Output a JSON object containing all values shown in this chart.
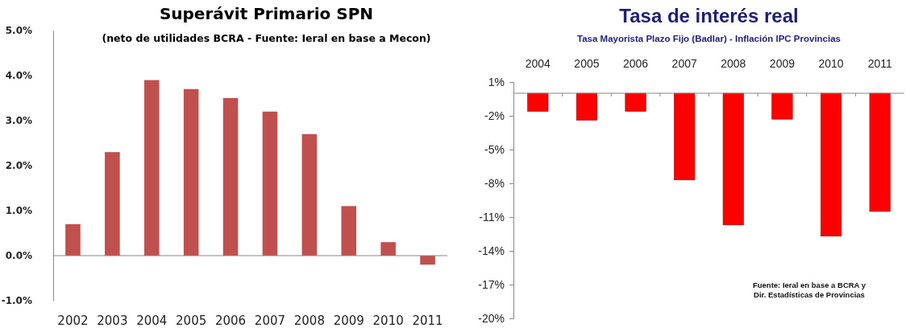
{
  "chart_data": [
    {
      "type": "bar",
      "title": "Superávit Primario SPN",
      "subtitle": "(neto de utilidades BCRA - Fuente: Ieral en base a Mecon)",
      "categories": [
        "2002",
        "2003",
        "2004",
        "2005",
        "2006",
        "2007",
        "2008",
        "2009",
        "2010",
        "2011"
      ],
      "values": [
        0.7,
        2.3,
        3.9,
        3.7,
        3.5,
        3.2,
        2.7,
        1.1,
        0.3,
        -0.2
      ],
      "color": "#c0504d",
      "ylim": [
        -1,
        5
      ],
      "yticks": [
        {
          "value": -1,
          "label": "-1.0%"
        },
        {
          "value": 0,
          "label": "0.0%"
        },
        {
          "value": 1,
          "label": "1.0%"
        },
        {
          "value": 2,
          "label": "2.0%"
        },
        {
          "value": 3,
          "label": "3.0%"
        },
        {
          "value": 4,
          "label": "4.0%"
        },
        {
          "value": 5,
          "label": "5.0%"
        }
      ]
    },
    {
      "type": "bar",
      "title": "Tasa de interés real",
      "subtitle": "Tasa Mayorista Plazo Fijo (Badlar) - Inflación IPC Provincias",
      "categories": [
        "2004",
        "2005",
        "2006",
        "2007",
        "2008",
        "2009",
        "2010",
        "2011"
      ],
      "values": [
        -1.6,
        -2.4,
        -1.6,
        -7.7,
        -11.7,
        -2.3,
        -12.7,
        -10.5
      ],
      "color": "#ff0000",
      "ylim": [
        -20,
        1
      ],
      "yticks": [
        {
          "value": 1,
          "label": "1%"
        },
        {
          "value": -2,
          "label": "-2%"
        },
        {
          "value": -5,
          "label": "-5%"
        },
        {
          "value": -8,
          "label": "-8%"
        },
        {
          "value": -11,
          "label": "-11%"
        },
        {
          "value": -14,
          "label": "-14%"
        },
        {
          "value": -17,
          "label": "-17%"
        },
        {
          "value": -20,
          "label": "-20%"
        }
      ],
      "annotations": [
        "Fuente: Ieral en base a BCRA  y\nDir. Estadísticas  de Provincias"
      ]
    }
  ]
}
